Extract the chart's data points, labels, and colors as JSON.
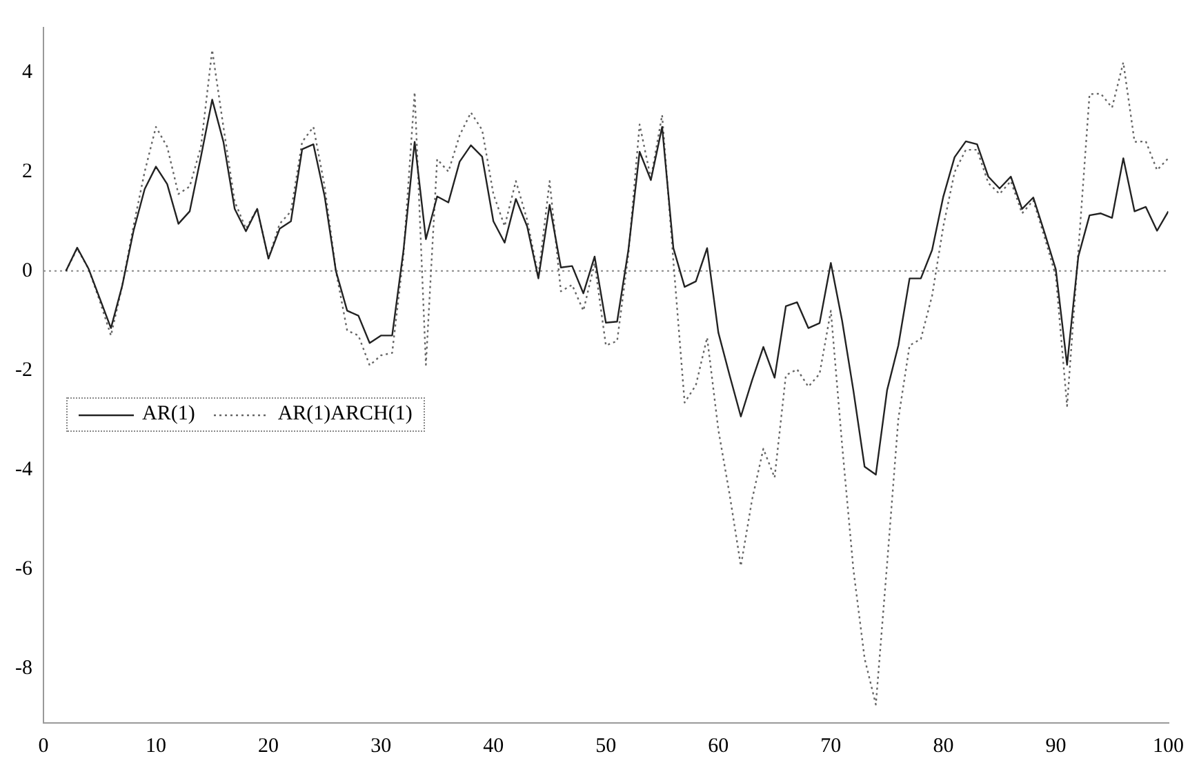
{
  "chart_data": {
    "type": "line",
    "x": [
      2,
      3,
      4,
      5,
      6,
      7,
      8,
      9,
      10,
      11,
      12,
      13,
      14,
      15,
      16,
      17,
      18,
      19,
      20,
      21,
      22,
      23,
      24,
      25,
      26,
      27,
      28,
      29,
      30,
      31,
      32,
      33,
      34,
      35,
      36,
      37,
      38,
      39,
      40,
      41,
      42,
      43,
      44,
      45,
      46,
      47,
      48,
      49,
      50,
      51,
      52,
      53,
      54,
      55,
      56,
      57,
      58,
      59,
      60,
      61,
      62,
      63,
      64,
      65,
      66,
      67,
      68,
      69,
      70,
      71,
      72,
      73,
      74,
      75,
      76,
      77,
      78,
      79,
      80,
      81,
      82,
      83,
      84,
      85,
      86,
      87,
      88,
      89,
      90,
      91,
      92,
      93,
      94,
      95,
      96,
      97,
      98,
      99,
      100
    ],
    "series": [
      {
        "name": "AR(1)",
        "color": "#222222",
        "line_style": "solid",
        "values": [
          0,
          0.47,
          0.05,
          -0.55,
          -1.15,
          -0.3,
          0.8,
          1.65,
          2.1,
          1.75,
          0.95,
          1.2,
          2.3,
          3.45,
          2.6,
          1.25,
          0.8,
          1.25,
          0.25,
          0.85,
          1.0,
          2.45,
          2.55,
          1.5,
          0.0,
          -0.8,
          -0.9,
          -1.45,
          -1.3,
          -1.3,
          0.4,
          2.6,
          0.64,
          1.5,
          1.38,
          2.2,
          2.53,
          2.3,
          1.0,
          0.57,
          1.45,
          0.9,
          -0.15,
          1.33,
          0.07,
          0.1,
          -0.45,
          0.29,
          -1.04,
          -1.02,
          0.42,
          2.4,
          1.83,
          2.9,
          0.46,
          -0.32,
          -0.21,
          0.46,
          -1.24,
          -2.1,
          -2.93,
          -2.2,
          -1.53,
          -2.15,
          -0.71,
          -0.63,
          -1.15,
          -1.05,
          0.16,
          -1.0,
          -2.4,
          -3.94,
          -4.1,
          -2.4,
          -1.5,
          -0.15,
          -0.15,
          0.42,
          1.5,
          2.29,
          2.61,
          2.55,
          1.9,
          1.66,
          1.9,
          1.25,
          1.48,
          0.77,
          0.03,
          -1.89,
          0.29,
          1.12,
          1.16,
          1.07,
          2.27,
          1.2,
          1.29,
          0.81,
          1.2
        ]
      },
      {
        "name": "AR(1)ARCH(1)",
        "color": "#666666",
        "line_style": "dotted",
        "values": [
          0,
          0.45,
          0.05,
          -0.6,
          -1.3,
          -0.3,
          0.9,
          2.0,
          2.9,
          2.5,
          1.55,
          1.7,
          2.5,
          4.45,
          2.9,
          1.4,
          0.85,
          1.25,
          0.25,
          0.95,
          1.2,
          2.6,
          2.9,
          1.7,
          0.0,
          -1.2,
          -1.3,
          -1.9,
          -1.7,
          -1.65,
          0.3,
          3.6,
          -1.89,
          2.25,
          2.0,
          2.73,
          3.19,
          2.84,
          1.55,
          0.9,
          1.81,
          1.03,
          -0.1,
          1.81,
          -0.41,
          -0.28,
          -0.8,
          0.16,
          -1.5,
          -1.41,
          0.33,
          2.95,
          1.86,
          3.14,
          0.2,
          -2.65,
          -2.3,
          -1.34,
          -3.2,
          -4.5,
          -5.94,
          -4.6,
          -3.58,
          -4.16,
          -2.1,
          -1.98,
          -2.33,
          -2.07,
          -0.8,
          -3.5,
          -6.0,
          -7.8,
          -8.73,
          -5.9,
          -2.98,
          -1.5,
          -1.37,
          -0.5,
          0.9,
          1.99,
          2.44,
          2.44,
          1.77,
          1.55,
          1.81,
          1.16,
          1.42,
          0.68,
          -0.1,
          -2.72,
          0.4,
          3.56,
          3.57,
          3.29,
          4.2,
          2.6,
          2.61,
          2.03,
          2.27
        ]
      }
    ],
    "xlim": [
      0,
      100
    ],
    "xticks": [
      0,
      10,
      20,
      30,
      40,
      50,
      60,
      70,
      80,
      90,
      100
    ],
    "ylim": [
      -9.1,
      4.9
    ],
    "yticks": [
      -8,
      -6,
      -4,
      -2,
      0,
      2,
      4
    ],
    "ref_lines": [
      {
        "axis": "y",
        "value": 0,
        "color": "#888888",
        "line_style": "dotted"
      }
    ],
    "grid": false,
    "legend": "left",
    "marker": "none"
  }
}
